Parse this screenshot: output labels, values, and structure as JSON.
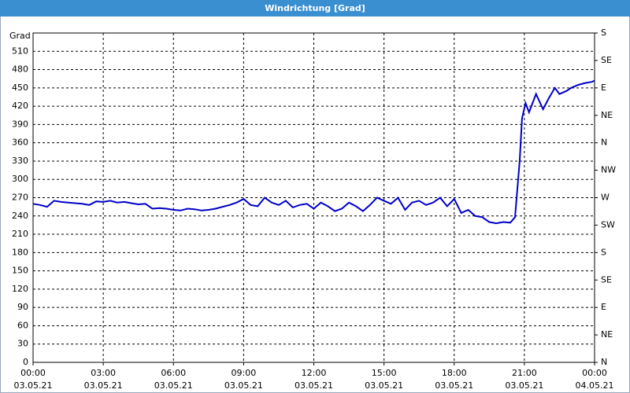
{
  "chart_data": {
    "type": "line",
    "title": "Windrichtung [Grad]",
    "y_label": "Grad",
    "x": [
      0,
      0.3,
      0.6,
      0.9,
      1.2,
      1.5,
      1.8,
      2.1,
      2.4,
      2.7,
      3,
      3.3,
      3.6,
      3.9,
      4.2,
      4.5,
      4.8,
      5.1,
      5.4,
      5.7,
      6,
      6.3,
      6.6,
      6.9,
      7.2,
      7.5,
      7.8,
      8.1,
      8.4,
      8.7,
      9,
      9.3,
      9.6,
      9.9,
      10.2,
      10.5,
      10.8,
      11.1,
      11.4,
      11.7,
      12,
      12.3,
      12.6,
      12.9,
      13.2,
      13.5,
      13.8,
      14.1,
      14.4,
      14.7,
      15,
      15.3,
      15.6,
      15.9,
      16.2,
      16.5,
      16.8,
      17.1,
      17.4,
      17.7,
      18,
      18.3,
      18.6,
      18.9,
      19.2,
      19.5,
      19.8,
      20.1,
      20.4,
      20.6,
      20.8,
      20.9,
      21.05,
      21.2,
      21.5,
      21.8,
      22,
      22.3,
      22.5,
      22.8,
      23,
      23.3,
      23.6,
      23.9,
      24
    ],
    "series": [
      {
        "name": "Windrichtung",
        "color": "#0000c8",
        "values": [
          260,
          258,
          255,
          265,
          263,
          262,
          261,
          260,
          258,
          264,
          263,
          265,
          262,
          263,
          261,
          259,
          260,
          252,
          253,
          252,
          250,
          249,
          252,
          251,
          249,
          250,
          252,
          255,
          258,
          262,
          268,
          258,
          256,
          270,
          262,
          258,
          265,
          254,
          258,
          260,
          252,
          262,
          256,
          248,
          252,
          262,
          256,
          248,
          258,
          270,
          265,
          260,
          270,
          250,
          262,
          265,
          258,
          262,
          270,
          256,
          268,
          245,
          250,
          240,
          238,
          230,
          228,
          230,
          229,
          238,
          330,
          400,
          425,
          410,
          440,
          415,
          430,
          450,
          440,
          445,
          450,
          455,
          458,
          460,
          462
        ]
      }
    ],
    "xlim": [
      0,
      24
    ],
    "xticks": [
      {
        "value": 0,
        "label": "00:00",
        "date": "03.05.21"
      },
      {
        "value": 3,
        "label": "03:00",
        "date": "03.05.21"
      },
      {
        "value": 6,
        "label": "06:00",
        "date": "03.05.21"
      },
      {
        "value": 9,
        "label": "09:00",
        "date": "03.05.21"
      },
      {
        "value": 12,
        "label": "12:00",
        "date": "03.05.21"
      },
      {
        "value": 15,
        "label": "15:00",
        "date": "03.05.21"
      },
      {
        "value": 18,
        "label": "18:00",
        "date": "03.05.21"
      },
      {
        "value": 21,
        "label": "21:00",
        "date": "03.05.21"
      },
      {
        "value": 24,
        "label": "00:00",
        "date": "04.05.21"
      }
    ],
    "ylim": [
      0,
      540
    ],
    "yticks": [
      0,
      30,
      60,
      90,
      120,
      150,
      180,
      210,
      240,
      270,
      300,
      330,
      360,
      390,
      420,
      450,
      480,
      510
    ],
    "y2lim": [
      0,
      540
    ],
    "y2ticks": [
      {
        "value": 0,
        "label": "N"
      },
      {
        "value": 45,
        "label": "NE"
      },
      {
        "value": 90,
        "label": "E"
      },
      {
        "value": 135,
        "label": "SE"
      },
      {
        "value": 180,
        "label": "S"
      },
      {
        "value": 225,
        "label": "SW"
      },
      {
        "value": 270,
        "label": "W"
      },
      {
        "value": 315,
        "label": "NW"
      },
      {
        "value": 360,
        "label": "N"
      },
      {
        "value": 405,
        "label": "NE"
      },
      {
        "value": 450,
        "label": "E"
      },
      {
        "value": 495,
        "label": "SE"
      },
      {
        "value": 540,
        "label": "S"
      }
    ],
    "grid": true
  }
}
